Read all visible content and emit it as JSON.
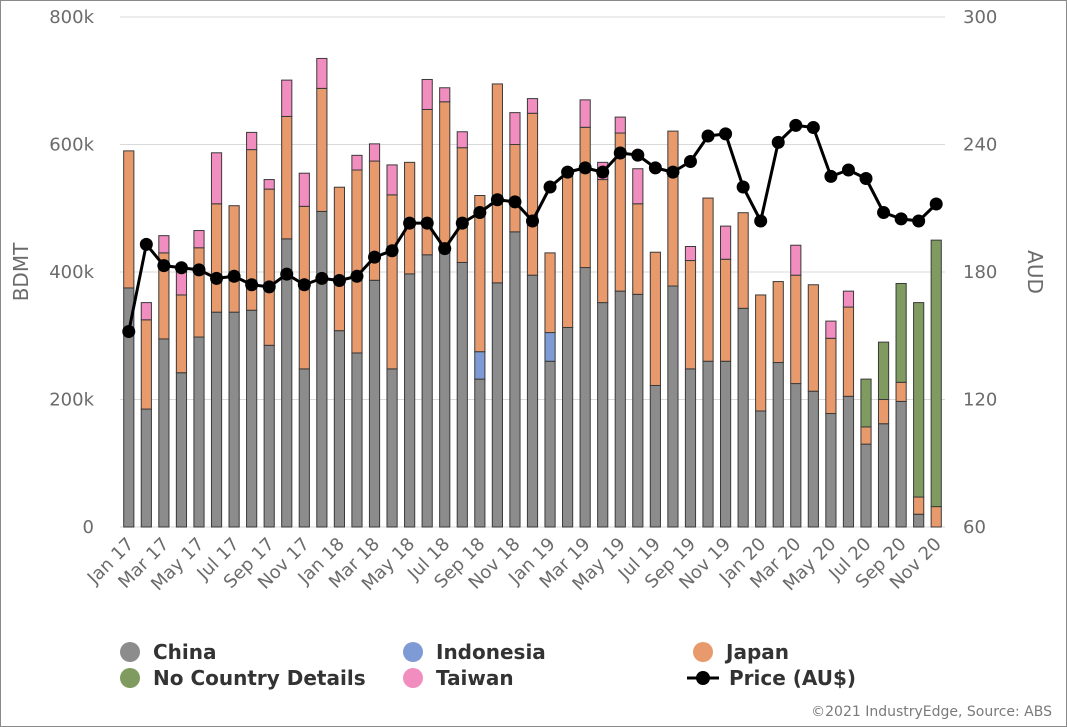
{
  "source": "©2021 IndustryEdge, Source: ABS",
  "colors": {
    "China": "#8c8c8c",
    "Indonesia": "#7f9bd6",
    "Japan": "#e89a6c",
    "No Country Details": "#7f9b60",
    "Taiwan": "#f28dc0",
    "Price": "#000000",
    "grid": "#d9d9d9"
  },
  "chart_data": {
    "type": "bar",
    "stacked": true,
    "xlabel": "",
    "ylabel": "BDMT",
    "y2label": "AUD",
    "ylim": [
      0,
      800000
    ],
    "y2lim": [
      60,
      300
    ],
    "yticks": [
      "0",
      "200k",
      "400k",
      "600k",
      "800k"
    ],
    "y2ticks": [
      "60",
      "120",
      "180",
      "240",
      "300"
    ],
    "grid": true,
    "legend_position": "bottom",
    "categories": [
      "Jan 17",
      "Feb 17",
      "Mar 17",
      "Apr 17",
      "May 17",
      "Jun 17",
      "Jul 17",
      "Aug 17",
      "Sep 17",
      "Oct 17",
      "Nov 17",
      "Dec 17",
      "Jan 18",
      "Feb 18",
      "Mar 18",
      "Apr 18",
      "May 18",
      "Jun 18",
      "Jul 18",
      "Aug 18",
      "Sep 18",
      "Oct 18",
      "Nov 18",
      "Dec 18",
      "Jan 19",
      "Feb 19",
      "Mar 19",
      "Apr 19",
      "May 19",
      "Jun 19",
      "Jul 19",
      "Aug 19",
      "Sep 19",
      "Oct 19",
      "Nov 19",
      "Dec 19",
      "Jan 20",
      "Feb 20",
      "Mar 20",
      "Apr 20",
      "May 20",
      "Jun 20",
      "Jul 20",
      "Aug 20",
      "Sep 20",
      "Oct 20",
      "Nov 20"
    ],
    "x_tick_labels": [
      "Jan 17",
      "Mar 17",
      "May 17",
      "Jul 17",
      "Sep 17",
      "Nov 17",
      "Jan 18",
      "Mar 18",
      "May 18",
      "Jul 18",
      "Sep 18",
      "Nov 18",
      "Jan 19",
      "Mar 19",
      "May 19",
      "Jul 19",
      "Sep 19",
      "Nov 19",
      "Jan 20",
      "Mar 20",
      "May 20",
      "Jul 20",
      "Sep 20",
      "Nov 20"
    ],
    "series": [
      {
        "name": "China",
        "values": [
          375000,
          185000,
          295000,
          242000,
          298000,
          337000,
          337000,
          340000,
          285000,
          452000,
          248000,
          495000,
          308000,
          273000,
          387000,
          248000,
          397000,
          427000,
          430000,
          415000,
          232000,
          383000,
          463000,
          395000,
          260000,
          313000,
          407000,
          352000,
          370000,
          365000,
          222000,
          378000,
          248000,
          260000,
          260000,
          343000,
          182000,
          258000,
          225000,
          213000,
          178000,
          205000,
          130000,
          162000,
          197000,
          20000,
          0
        ]
      },
      {
        "name": "Indonesia",
        "values": [
          0,
          0,
          0,
          0,
          0,
          0,
          0,
          0,
          0,
          0,
          0,
          0,
          0,
          0,
          0,
          0,
          0,
          0,
          0,
          0,
          43000,
          0,
          0,
          0,
          45000,
          0,
          0,
          0,
          0,
          0,
          0,
          0,
          0,
          0,
          0,
          0,
          0,
          0,
          0,
          0,
          0,
          0,
          0,
          0,
          0,
          0,
          0
        ]
      },
      {
        "name": "Japan",
        "values": [
          215000,
          140000,
          135000,
          122000,
          140000,
          170000,
          167000,
          252000,
          245000,
          192000,
          255000,
          193000,
          225000,
          287000,
          187000,
          273000,
          175000,
          228000,
          237000,
          180000,
          245000,
          312000,
          137000,
          254000,
          125000,
          237000,
          220000,
          193000,
          248000,
          142000,
          209000,
          243000,
          170000,
          256000,
          160000,
          150000,
          182000,
          127000,
          170000,
          167000,
          118000,
          140000,
          27000,
          38000,
          30000,
          27000,
          32000
        ]
      },
      {
        "name": "No Country Details",
        "values": [
          0,
          0,
          0,
          0,
          0,
          0,
          0,
          0,
          0,
          0,
          0,
          0,
          0,
          0,
          0,
          0,
          0,
          0,
          0,
          0,
          0,
          0,
          0,
          0,
          0,
          0,
          0,
          0,
          0,
          0,
          0,
          0,
          0,
          0,
          0,
          0,
          0,
          0,
          0,
          0,
          0,
          0,
          75000,
          90000,
          155000,
          305000,
          418000
        ]
      },
      {
        "name": "Taiwan",
        "values": [
          0,
          27000,
          27000,
          38000,
          27000,
          80000,
          0,
          27000,
          15000,
          57000,
          52000,
          47000,
          0,
          23000,
          27000,
          47000,
          0,
          47000,
          22000,
          25000,
          0,
          0,
          50000,
          23000,
          0,
          0,
          43000,
          27000,
          25000,
          55000,
          0,
          0,
          22000,
          0,
          52000,
          0,
          0,
          0,
          47000,
          0,
          27000,
          25000,
          0,
          0,
          0,
          0,
          0
        ]
      }
    ],
    "price_series": {
      "name": "Price (AU$)",
      "values": [
        152,
        193,
        183,
        182,
        181,
        177,
        178,
        174,
        173,
        179,
        174,
        177,
        176,
        178,
        187,
        190,
        203,
        203,
        191,
        203,
        208,
        214,
        213,
        204,
        220,
        227,
        229,
        227,
        236,
        235,
        229,
        227,
        232,
        244,
        245,
        220,
        204,
        241,
        249,
        248,
        225,
        228,
        224,
        208,
        205,
        204,
        212
      ]
    }
  },
  "legend": [
    {
      "label": "China",
      "kind": "dot",
      "color_key": "China"
    },
    {
      "label": "Indonesia",
      "kind": "dot",
      "color_key": "Indonesia"
    },
    {
      "label": "Japan",
      "kind": "dot",
      "color_key": "Japan"
    },
    {
      "label": "No Country Details",
      "kind": "dot",
      "color_key": "No Country Details"
    },
    {
      "label": "Taiwan",
      "kind": "dot",
      "color_key": "Taiwan"
    },
    {
      "label": "Price (AU$)",
      "kind": "line",
      "color_key": "Price"
    }
  ]
}
